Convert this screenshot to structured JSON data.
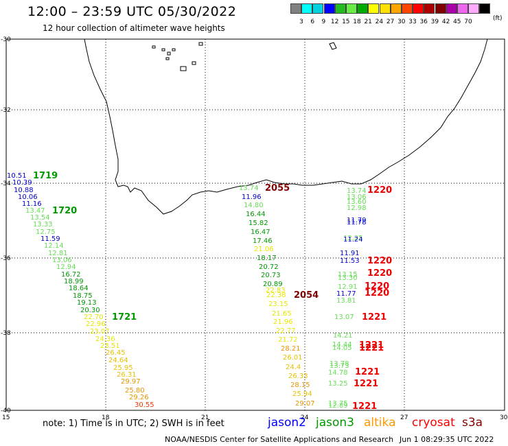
{
  "header": {
    "title": "12:00 – 23:59 UTC 05/30/2022",
    "subtitle": "12 hour collection of altimeter wave heights"
  },
  "scale": {
    "colors": [
      "#808080",
      "#00ffff",
      "#00d0e0",
      "#0000ff",
      "#22bb22",
      "#66ee44",
      "#00aa00",
      "#ffff00",
      "#ffe000",
      "#ffa500",
      "#ff4500",
      "#ff0000",
      "#aa0000",
      "#800000",
      "#aa00aa",
      "#ee66ee",
      "#ffaaff",
      "#000000"
    ],
    "labels": [
      "3",
      "6",
      "9",
      "12",
      "15",
      "18",
      "21",
      "24",
      "27",
      "30",
      "33",
      "36",
      "39",
      "42",
      "45",
      "70"
    ],
    "unit": "(ft)"
  },
  "axes": {
    "lon_labels": [
      "15",
      "18",
      "21",
      "24",
      "27",
      "30"
    ],
    "lat_labels": [
      "-30",
      "-32",
      "-34",
      "-36",
      "-38",
      "-40"
    ]
  },
  "tracks": [
    {
      "points": [
        {
          "v": "10.51",
          "c": "#0000cc"
        },
        {
          "v": "10.39",
          "c": "#0000cc"
        },
        {
          "v": "10.88",
          "c": "#0000cc"
        },
        {
          "v": "10.06",
          "c": "#0000cc"
        },
        {
          "v": "11.16",
          "c": "#0000cc"
        },
        {
          "v": "13.47",
          "c": "#66dd55"
        },
        {
          "v": "13.54",
          "c": "#66dd55"
        },
        {
          "v": "13.33",
          "c": "#66dd55"
        },
        {
          "v": "12.75",
          "c": "#66dd55"
        },
        {
          "v": "11.59",
          "c": "#0000cc"
        },
        {
          "v": "12.14",
          "c": "#66dd55"
        },
        {
          "v": "12.81",
          "c": "#66dd55"
        },
        {
          "v": "13.06",
          "c": "#66dd55"
        },
        {
          "v": "12.94",
          "c": "#66dd55"
        },
        {
          "v": "16.72",
          "c": "#009900"
        },
        {
          "v": "18.99",
          "c": "#009900"
        },
        {
          "v": "18.64",
          "c": "#009900"
        },
        {
          "v": "18.75",
          "c": "#009900"
        },
        {
          "v": "19.13",
          "c": "#009900"
        },
        {
          "v": "20.30",
          "c": "#009900"
        },
        {
          "v": "22.70",
          "c": "#e6e600"
        },
        {
          "v": "22.96",
          "c": "#e6e600"
        },
        {
          "v": "23.07",
          "c": "#e6e600"
        },
        {
          "v": "24.36",
          "c": "#e6e600"
        },
        {
          "v": "23.51",
          "c": "#e6e600"
        },
        {
          "v": "26.45",
          "c": "#e6c000"
        },
        {
          "v": "24.64",
          "c": "#e6c000"
        },
        {
          "v": "25.95",
          "c": "#e6c000"
        },
        {
          "v": "26.31",
          "c": "#e6c000"
        },
        {
          "v": "29.97",
          "c": "#e69500"
        },
        {
          "v": "25.80",
          "c": "#e69500"
        },
        {
          "v": "29.26",
          "c": "#e69500"
        },
        {
          "v": "30.55",
          "c": "#ee3300"
        }
      ]
    },
    {
      "points": [
        {
          "v": "13.74",
          "c": "#66dd55"
        },
        {
          "v": "11.96",
          "c": "#0000cc"
        },
        {
          "v": "14.80",
          "c": "#66dd55"
        },
        {
          "v": "16.44",
          "c": "#009900"
        },
        {
          "v": "15.82",
          "c": "#009900"
        },
        {
          "v": "16.47",
          "c": "#009900"
        },
        {
          "v": "17.46",
          "c": "#009900"
        },
        {
          "v": "21.06",
          "c": "#e6e600"
        },
        {
          "v": "18.17",
          "c": "#009900"
        },
        {
          "v": "20.72",
          "c": "#009900"
        },
        {
          "v": "20.73",
          "c": "#009900"
        },
        {
          "v": "20.89",
          "c": "#009900"
        },
        {
          "v": "22.83",
          "c": "#e6e600"
        },
        {
          "v": "22.38",
          "c": "#e6e600"
        },
        {
          "v": "23.15",
          "c": "#e6e600"
        },
        {
          "v": "21.65",
          "c": "#e6e600"
        },
        {
          "v": "21.96",
          "c": "#e6e600"
        },
        {
          "v": "22.77",
          "c": "#e6e600"
        },
        {
          "v": "21.72",
          "c": "#e6e600"
        },
        {
          "v": "28.21",
          "c": "#e69500"
        },
        {
          "v": "26.01",
          "c": "#e6c000"
        },
        {
          "v": "24.4",
          "c": "#e6c000"
        },
        {
          "v": "26.33",
          "c": "#e6c000"
        },
        {
          "v": "28.15",
          "c": "#e69500"
        },
        {
          "v": "25.94",
          "c": "#e6c000"
        },
        {
          "v": "29.07",
          "c": "#e69500"
        }
      ]
    },
    {
      "points": [
        {
          "v": "13.74",
          "c": "#66dd55"
        },
        {
          "v": "13.06",
          "c": "#66dd55"
        },
        {
          "v": "13.60",
          "c": "#66dd55"
        },
        {
          "v": "12.98",
          "c": "#66dd55"
        },
        {
          "v": "11.79",
          "c": "#0000cc"
        },
        {
          "v": "11.78",
          "c": "#0000cc"
        },
        {
          "v": "12.25",
          "c": "#66dd55"
        },
        {
          "v": "11.24",
          "c": "#0000cc"
        },
        {
          "v": "11.91",
          "c": "#0000cc"
        },
        {
          "v": "11.53",
          "c": "#0000cc"
        },
        {
          "v": "13.15",
          "c": "#66dd55"
        },
        {
          "v": "13.30",
          "c": "#66dd55"
        },
        {
          "v": "12.91",
          "c": "#66dd55"
        },
        {
          "v": "11.77",
          "c": "#0000cc"
        },
        {
          "v": "13.81",
          "c": "#66dd55"
        },
        {
          "v": "13.07",
          "c": "#66dd55"
        },
        {
          "v": "14.21",
          "c": "#66dd55"
        },
        {
          "v": "14.44",
          "c": "#66dd55"
        },
        {
          "v": "14.05",
          "c": "#66dd55"
        },
        {
          "v": "13.78",
          "c": "#66dd55"
        },
        {
          "v": "13.73",
          "c": "#66dd55"
        },
        {
          "v": "14.78",
          "c": "#66dd55"
        },
        {
          "v": "13.25",
          "c": "#66dd55"
        },
        {
          "v": "13.75",
          "c": "#66dd55"
        },
        {
          "v": "12.89",
          "c": "#66dd55"
        }
      ]
    }
  ],
  "time_labels": [
    {
      "v": "1719",
      "c": "#009900"
    },
    {
      "v": "1720",
      "c": "#009900"
    },
    {
      "v": "1721",
      "c": "#009900"
    },
    {
      "v": "2055",
      "c": "#800000"
    },
    {
      "v": "2054",
      "c": "#800000"
    },
    {
      "v": "1220",
      "c": "#ee0000"
    },
    {
      "v": "1220",
      "c": "#ee0000"
    },
    {
      "v": "1220",
      "c": "#ee0000"
    },
    {
      "v": "1220",
      "c": "#ee0000"
    },
    {
      "v": "1220",
      "c": "#ee0000"
    },
    {
      "v": "1221",
      "c": "#ee0000"
    },
    {
      "v": "1221",
      "c": "#ee0000"
    },
    {
      "v": "1221",
      "c": "#ee0000"
    },
    {
      "v": "1221",
      "c": "#ee0000"
    },
    {
      "v": "1221",
      "c": "#ee0000"
    },
    {
      "v": "1221",
      "c": "#ee0000"
    }
  ],
  "note": "note:  1) Time is in UTC;  2) SWH is in feet",
  "satellites": [
    {
      "name": "jason2",
      "color": "#0000ff"
    },
    {
      "name": "jason3",
      "color": "#009900"
    },
    {
      "name": "altika",
      "color": "#ff9900"
    },
    {
      "name": "cryosat",
      "color": "#ff0000"
    },
    {
      "name": "s3a",
      "color": "#880000"
    }
  ],
  "footer": {
    "credit": "NOAA/NESDIS Center for Satellite Applications and Research",
    "timestamp": "Jun  1 08:29:35 UTC 2022"
  }
}
